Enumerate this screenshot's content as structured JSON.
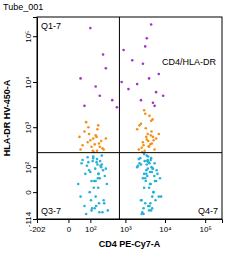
{
  "chart_data": {
    "type": "scatter",
    "title": "Tube_001",
    "x_label": "CD4 PE-Cy7-A",
    "y_label": "HLA-DR HV-450-A",
    "xlim": [
      -202,
      262144
    ],
    "ylim": [
      -114,
      262144
    ],
    "xticks": [
      -202,
      0,
      {
        "value": 100,
        "label": "10²"
      },
      {
        "value": 1000,
        "label": "10³"
      },
      {
        "value": 10000,
        "label": "10⁴"
      },
      {
        "value": 100000,
        "label": "10⁵"
      }
    ],
    "yticks": [
      -114,
      0,
      {
        "value": 100,
        "label": "10²"
      },
      {
        "value": 1000,
        "label": "10³"
      },
      {
        "value": 10000,
        "label": "10⁴"
      },
      {
        "value": 100000,
        "label": "10⁵"
      }
    ],
    "log": true,
    "quadrant": {
      "x": 700,
      "y": 250
    },
    "quadrant_labels": [
      "Q1-7",
      "CD4/HLA-DR",
      "Q3-7",
      "Q4-7"
    ],
    "series": [
      {
        "color": "#27b1d6",
        "marker": "dot",
        "x": [
          30,
          60,
          90,
          120,
          150,
          180,
          210,
          240,
          80,
          110,
          140,
          170,
          200,
          260,
          300,
          50,
          70,
          100,
          130,
          160,
          190,
          220,
          280,
          340,
          45,
          95,
          125,
          155,
          185,
          230,
          75,
          105,
          135,
          165,
          195,
          250,
          320,
          40,
          85,
          115,
          145,
          175,
          205,
          270,
          65,
          125,
          180,
          230,
          110,
          150
        ],
        "values": [
          20,
          -40,
          80,
          150,
          -10,
          60,
          110,
          -70,
          190,
          30,
          -50,
          120,
          40,
          -20,
          90,
          160,
          -80,
          70,
          10,
          140,
          -30,
          100,
          50,
          -60,
          130,
          0,
          180,
          -40,
          60,
          210,
          110,
          -20,
          30,
          170,
          -70,
          80,
          20,
          -10,
          140,
          -50,
          90,
          40,
          150,
          -30,
          60,
          200,
          10,
          120,
          -60,
          30
        ]
      },
      {
        "color": "#27b1d6",
        "marker": "dot",
        "x": [
          2500,
          3000,
          3500,
          4000,
          4500,
          5000,
          2200,
          2800,
          3200,
          3800,
          4200,
          4800,
          5500,
          6000,
          2600,
          3100,
          3600,
          4100,
          4600,
          5200,
          2400,
          2900,
          3400,
          3900,
          4400,
          5800,
          6500,
          2100,
          2700,
          3300,
          3700,
          4300,
          4900,
          5400,
          7000,
          2300,
          3000,
          3500,
          4000,
          4700,
          2500,
          3200,
          3800,
          4500,
          5100,
          6200,
          2900,
          3600,
          4200,
          7500,
          2000,
          2600,
          3400,
          4100,
          4800,
          5600,
          3000,
          3700,
          4400,
          8000
        ],
        "values": [
          -20,
          60,
          120,
          10,
          -60,
          90,
          170,
          40,
          -30,
          200,
          70,
          -10,
          130,
          30,
          -80,
          150,
          50,
          -40,
          100,
          0,
          180,
          -50,
          80,
          140,
          20,
          -20,
          60,
          110,
          -70,
          30,
          160,
          -30,
          90,
          50,
          -10,
          130,
          10,
          210,
          -60,
          70,
          120,
          40,
          -40,
          180,
          0,
          80,
          -80,
          150,
          20,
          40,
          100,
          -20,
          60,
          130,
          -50,
          30,
          230,
          90,
          160,
          -10
        ]
      },
      {
        "color": "#f39019",
        "marker": "dot",
        "x": [
          40,
          80,
          120,
          160,
          200,
          60,
          100,
          140,
          180,
          240,
          300,
          50,
          90,
          130,
          170,
          220,
          70,
          110,
          150,
          190,
          260,
          85,
          125,
          165,
          35
        ],
        "values": [
          300,
          450,
          280,
          600,
          350,
          800,
          500,
          400,
          1100,
          320,
          550,
          380,
          700,
          260,
          900,
          480,
          1300,
          350,
          650,
          420,
          300,
          1000,
          550,
          280,
          600
        ]
      },
      {
        "color": "#f39019",
        "marker": "dot",
        "x": [
          2200,
          2800,
          3400,
          4000,
          4600,
          5200,
          2500,
          3100,
          3700,
          4300,
          4900,
          6000,
          2000,
          2600,
          3200,
          3800,
          4400,
          5500,
          2300,
          2900,
          3500,
          4100,
          4700,
          7000,
          2700,
          3300,
          3900,
          4500,
          5000,
          3000
        ],
        "values": [
          300,
          450,
          600,
          350,
          800,
          500,
          1200,
          280,
          700,
          400,
          1500,
          550,
          900,
          330,
          2000,
          480,
          650,
          300,
          1100,
          380,
          520,
          1800,
          420,
          700,
          260,
          950,
          360,
          1400,
          600,
          2400
        ]
      },
      {
        "color": "#a033c8",
        "marker": "dot",
        "x": [
          60,
          150,
          300,
          900,
          2500,
          4000,
          6000,
          1500,
          200,
          3500,
          5000,
          800,
          100,
          2800,
          7000,
          450,
          3200,
          1200,
          250,
          5500,
          40,
          4500,
          2000,
          600,
          9000
        ],
        "values": [
          3000,
          8000,
          20000,
          50000,
          4000,
          12000,
          6000,
          30000,
          5000,
          90000,
          3500,
          10000,
          150000,
          25000,
          15000,
          4000,
          60000,
          7000,
          40000,
          3000,
          12000,
          180000,
          9000,
          2800,
          5000
        ]
      }
    ]
  }
}
